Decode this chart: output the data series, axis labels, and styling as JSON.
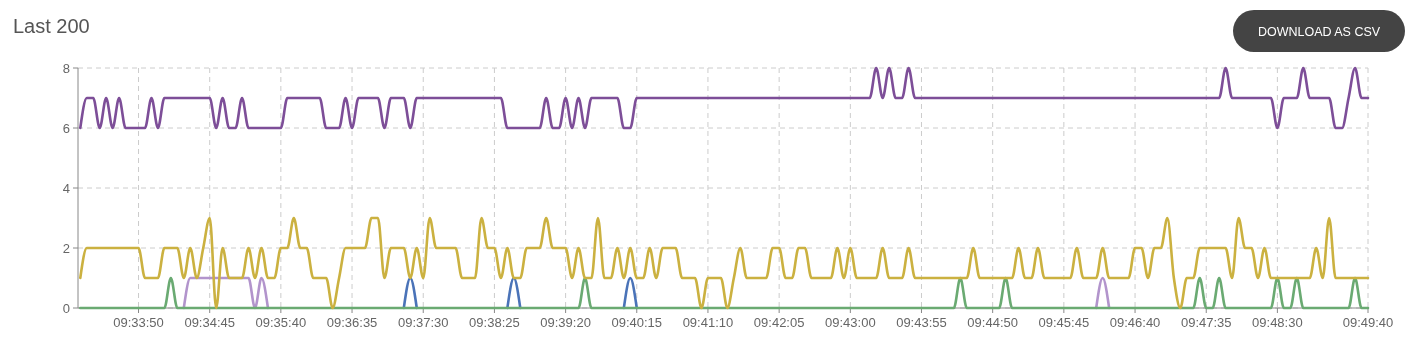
{
  "chart_data": {
    "type": "line",
    "title": "Last 200",
    "annotations": [
      "DOWNLOAD AS CSV"
    ],
    "x": [
      9.55139,
      9.55278,
      9.55417,
      9.55556,
      9.55694,
      9.55833,
      9.55972,
      9.56111,
      9.5625,
      9.56389,
      9.56528,
      9.56667,
      9.56806,
      9.56944,
      9.57083,
      9.57222,
      9.57361,
      9.575,
      9.57639,
      9.57778,
      9.57917,
      9.58056,
      9.58194,
      9.58333,
      9.58472,
      9.58611,
      9.5875,
      9.58889,
      9.59028,
      9.59167,
      9.59306,
      9.59444,
      9.59583,
      9.59722,
      9.59861,
      9.6,
      9.60139,
      9.60278,
      9.60417,
      9.60556,
      9.60694,
      9.60833,
      9.60972,
      9.61111,
      9.6125,
      9.61389,
      9.61528,
      9.61667,
      9.61806,
      9.61944,
      9.62083,
      9.62222,
      9.62361,
      9.625,
      9.62639,
      9.62778,
      9.62917,
      9.63056,
      9.63194,
      9.63333,
      9.63472,
      9.63611,
      9.6375,
      9.63889,
      9.64028,
      9.64167,
      9.64306,
      9.64444,
      9.64583,
      9.64722,
      9.64861,
      9.65,
      9.65139,
      9.65278,
      9.65417,
      9.65556,
      9.65694,
      9.65833,
      9.65972,
      9.66111,
      9.6625,
      9.66389,
      9.66528,
      9.66667,
      9.66806,
      9.66944,
      9.67083,
      9.67222,
      9.67361,
      9.675,
      9.67639,
      9.67778,
      9.67917,
      9.68056,
      9.68194,
      9.68333,
      9.68472,
      9.68611,
      9.6875,
      9.68889,
      9.69028,
      9.69167,
      9.69306,
      9.69444,
      9.69583,
      9.69722,
      9.69861,
      9.7,
      9.70139,
      9.70278,
      9.70417,
      9.70556,
      9.70694,
      9.70833,
      9.70972,
      9.71111,
      9.7125,
      9.71389,
      9.71528,
      9.71667,
      9.71806,
      9.71944,
      9.72083,
      9.72222,
      9.72361,
      9.725,
      9.72639,
      9.72778,
      9.72917,
      9.73056,
      9.73194,
      9.73333,
      9.73472,
      9.73611,
      9.7375,
      9.73889,
      9.74028,
      9.74167,
      9.74306,
      9.74444,
      9.74583,
      9.74722,
      9.74861,
      9.75,
      9.75139,
      9.75278,
      9.75417,
      9.75556,
      9.75694,
      9.75833,
      9.75972,
      9.76111,
      9.7625,
      9.76389,
      9.76528,
      9.76667,
      9.76806,
      9.76944,
      9.77083,
      9.77222,
      9.77361,
      9.775,
      9.77639,
      9.77778,
      9.77917,
      9.78056,
      9.78194,
      9.78333,
      9.78472,
      9.78611,
      9.7875,
      9.78889,
      9.79028,
      9.79167,
      9.79306,
      9.79444,
      9.79583,
      9.79722,
      9.79861,
      9.8,
      9.80139,
      9.80278,
      9.80417,
      9.80556,
      9.80694,
      9.80833,
      9.80972,
      9.81111,
      9.8125,
      9.81389,
      9.81528,
      9.81667,
      9.81806,
      9.81944,
      9.82083,
      9.82222,
      9.82361,
      9.825,
      9.82639,
      9.82778
    ],
    "series": [
      {
        "color": "#4a73b8",
        "values": [
          null,
          null,
          null,
          null,
          null,
          null,
          null,
          null,
          null,
          null,
          null,
          null,
          null,
          null,
          null,
          null,
          null,
          null,
          null,
          null,
          null,
          null,
          null,
          null,
          null,
          null,
          null,
          null,
          null,
          null,
          null,
          null,
          null,
          null,
          null,
          null,
          null,
          null,
          null,
          null,
          null,
          null,
          null,
          null,
          null,
          null,
          null,
          null,
          null,
          null,
          0,
          1,
          0,
          null,
          null,
          null,
          null,
          null,
          null,
          null,
          null,
          null,
          null,
          null,
          null,
          null,
          0,
          1,
          0,
          null,
          null,
          null,
          null,
          null,
          null,
          null,
          null,
          null,
          null,
          null,
          null,
          null,
          null,
          null,
          0,
          1,
          0,
          null,
          null,
          null,
          null,
          null,
          null,
          null,
          null,
          null,
          null,
          null,
          null,
          null,
          null,
          null,
          null,
          null,
          null,
          null,
          null,
          null,
          null,
          null,
          null,
          null,
          null,
          null,
          null,
          null,
          null,
          null,
          null,
          null,
          null,
          null,
          null,
          null,
          null,
          null,
          null,
          null,
          null,
          null,
          null,
          null,
          null,
          null,
          null,
          null,
          null,
          null,
          null,
          null,
          null,
          null,
          null,
          null,
          null,
          null,
          null,
          null,
          null,
          null,
          null,
          null,
          null,
          null,
          null,
          null,
          null,
          null,
          null,
          null,
          null,
          null,
          null,
          null,
          null,
          null,
          null,
          null,
          null,
          null,
          null,
          null,
          null,
          null,
          null,
          null,
          null,
          null,
          null,
          null,
          null,
          null,
          null,
          null,
          null,
          null,
          null,
          null,
          null,
          null,
          null,
          null,
          null,
          null,
          null,
          null,
          null,
          null,
          null,
          null
        ]
      },
      {
        "color": "#b294cc",
        "values": [
          null,
          null,
          null,
          null,
          null,
          null,
          null,
          null,
          null,
          null,
          null,
          null,
          null,
          null,
          null,
          null,
          0,
          1,
          1,
          1,
          1,
          1,
          1,
          1,
          1,
          1,
          1,
          0,
          1,
          0,
          null,
          null,
          null,
          null,
          null,
          null,
          null,
          null,
          null,
          null,
          null,
          null,
          null,
          null,
          null,
          null,
          null,
          null,
          null,
          null,
          null,
          null,
          null,
          null,
          null,
          null,
          null,
          null,
          null,
          null,
          null,
          null,
          null,
          null,
          null,
          null,
          null,
          null,
          null,
          null,
          null,
          null,
          null,
          null,
          null,
          null,
          null,
          null,
          null,
          null,
          null,
          null,
          null,
          null,
          null,
          null,
          null,
          null,
          null,
          null,
          null,
          null,
          null,
          null,
          null,
          null,
          null,
          null,
          null,
          null,
          null,
          null,
          null,
          null,
          null,
          null,
          null,
          null,
          null,
          null,
          null,
          null,
          null,
          null,
          null,
          null,
          null,
          null,
          null,
          null,
          null,
          null,
          null,
          null,
          null,
          null,
          null,
          null,
          null,
          null,
          null,
          null,
          null,
          null,
          null,
          null,
          null,
          null,
          null,
          null,
          null,
          null,
          null,
          null,
          null,
          null,
          null,
          null,
          null,
          null,
          null,
          null,
          null,
          null,
          null,
          null,
          null,
          0,
          1,
          0,
          null,
          null,
          null,
          null,
          null,
          null,
          null,
          null,
          null,
          null,
          null,
          null,
          null,
          null,
          null,
          null,
          null,
          null,
          null,
          null,
          null,
          null,
          null,
          null,
          null,
          null,
          null,
          null,
          null,
          null,
          null,
          null,
          null,
          null,
          null,
          null,
          null,
          null,
          null,
          null
        ]
      },
      {
        "color": "#6aaa72",
        "values": [
          0,
          0,
          0,
          0,
          0,
          0,
          0,
          0,
          0,
          0,
          0,
          0,
          0,
          0,
          1,
          0,
          0,
          0,
          0,
          0,
          0,
          0,
          0,
          0,
          0,
          0,
          0,
          0,
          0,
          0,
          0,
          0,
          0,
          0,
          0,
          0,
          0,
          0,
          0,
          0,
          0,
          0,
          0,
          0,
          0,
          0,
          0,
          0,
          0,
          0,
          0,
          0,
          0,
          0,
          0,
          0,
          0,
          0,
          0,
          0,
          0,
          0,
          0,
          0,
          0,
          0,
          0,
          0,
          0,
          0,
          0,
          0,
          0,
          0,
          0,
          0,
          0,
          0,
          1,
          0,
          0,
          0,
          0,
          0,
          0,
          0,
          0,
          0,
          0,
          0,
          0,
          0,
          0,
          0,
          0,
          0,
          0,
          0,
          0,
          0,
          0,
          0,
          0,
          0,
          0,
          0,
          0,
          0,
          0,
          0,
          0,
          0,
          0,
          0,
          0,
          0,
          0,
          0,
          0,
          0,
          0,
          0,
          0,
          0,
          0,
          0,
          0,
          0,
          0,
          0,
          0,
          0,
          0,
          0,
          0,
          0,
          1,
          0,
          0,
          0,
          0,
          0,
          0,
          1,
          0,
          0,
          0,
          0,
          0,
          0,
          0,
          0,
          0,
          0,
          0,
          0,
          0,
          0,
          0,
          0,
          0,
          0,
          0,
          0,
          0,
          0,
          0,
          0,
          0,
          0,
          0,
          0,
          0,
          1,
          0,
          0,
          1,
          0,
          0,
          0,
          0,
          0,
          0,
          0,
          0,
          1,
          0,
          0,
          1,
          0,
          0,
          0,
          0,
          0,
          0,
          0,
          0,
          1,
          0,
          0
        ]
      },
      {
        "color": "#cbb140",
        "values": [
          1,
          2,
          2,
          2,
          2,
          2,
          2,
          2,
          2,
          2,
          1,
          1,
          1,
          2,
          2,
          2,
          1,
          2,
          1,
          2,
          3,
          0,
          2,
          1,
          1,
          1,
          2,
          1,
          2,
          1,
          1,
          2,
          2,
          3,
          2,
          2,
          1,
          1,
          1,
          0,
          1,
          2,
          2,
          2,
          2,
          3,
          3,
          1,
          2,
          2,
          2,
          1,
          2,
          1,
          3,
          2,
          2,
          2,
          2,
          1,
          1,
          1,
          3,
          2,
          2,
          1,
          2,
          1,
          1,
          2,
          2,
          2,
          3,
          2,
          2,
          2,
          1,
          2,
          1,
          1,
          3,
          1,
          1,
          2,
          1,
          2,
          1,
          1,
          2,
          1,
          2,
          2,
          2,
          1,
          1,
          1,
          0,
          1,
          1,
          1,
          0,
          1,
          2,
          1,
          1,
          1,
          1,
          2,
          2,
          1,
          1,
          2,
          2,
          1,
          1,
          1,
          1,
          2,
          1,
          2,
          1,
          1,
          1,
          1,
          2,
          1,
          1,
          1,
          2,
          1,
          1,
          1,
          1,
          1,
          1,
          1,
          1,
          1,
          2,
          1,
          1,
          1,
          1,
          1,
          1,
          2,
          1,
          1,
          2,
          1,
          1,
          1,
          1,
          1,
          2,
          1,
          1,
          1,
          2,
          1,
          1,
          1,
          1,
          2,
          2,
          1,
          2,
          2,
          3,
          1,
          0,
          1,
          1,
          2,
          2,
          2,
          2,
          2,
          1,
          3,
          2,
          2,
          1,
          2,
          1,
          1,
          1,
          1,
          1,
          1,
          1,
          2,
          1,
          3,
          1,
          1,
          1,
          1,
          1,
          1
        ]
      },
      {
        "color": "#7d4e98",
        "values": [
          6,
          7,
          7,
          6,
          7,
          6,
          7,
          6,
          6,
          6,
          6,
          7,
          6,
          7,
          7,
          7,
          7,
          7,
          7,
          7,
          7,
          6,
          7,
          6,
          6,
          7,
          6,
          6,
          6,
          6,
          6,
          6,
          7,
          7,
          7,
          7,
          7,
          7,
          6,
          6,
          6,
          7,
          6,
          7,
          7,
          7,
          7,
          6,
          7,
          7,
          7,
          6,
          7,
          7,
          7,
          7,
          7,
          7,
          7,
          7,
          7,
          7,
          7,
          7,
          7,
          7,
          6,
          6,
          6,
          6,
          6,
          6,
          7,
          6,
          6,
          7,
          6,
          7,
          6,
          7,
          7,
          7,
          7,
          7,
          6,
          6,
          7,
          7,
          7,
          7,
          7,
          7,
          7,
          7,
          7,
          7,
          7,
          7,
          7,
          7,
          7,
          7,
          7,
          7,
          7,
          7,
          7,
          7,
          7,
          7,
          7,
          7,
          7,
          7,
          7,
          7,
          7,
          7,
          7,
          7,
          7,
          7,
          7,
          8,
          7,
          8,
          7,
          7,
          8,
          7,
          7,
          7,
          7,
          7,
          7,
          7,
          7,
          7,
          7,
          7,
          7,
          7,
          7,
          7,
          7,
          7,
          7,
          7,
          7,
          7,
          7,
          7,
          7,
          7,
          7,
          7,
          7,
          7,
          7,
          7,
          7,
          7,
          7,
          7,
          7,
          7,
          7,
          7,
          7,
          7,
          7,
          7,
          7,
          7,
          7,
          7,
          7,
          8,
          7,
          7,
          7,
          7,
          7,
          7,
          7,
          6,
          7,
          7,
          7,
          8,
          7,
          7,
          7,
          7,
          6,
          6,
          7,
          8,
          7,
          7
        ]
      }
    ],
    "xlim": [
      9.5509,
      9.82778
    ],
    "xticks": [
      {
        "value": 9.56389,
        "label": "09:33:50"
      },
      {
        "value": 9.57917,
        "label": "09:34:45"
      },
      {
        "value": 9.59444,
        "label": "09:35:40"
      },
      {
        "value": 9.60972,
        "label": "09:36:35"
      },
      {
        "value": 9.625,
        "label": "09:37:30"
      },
      {
        "value": 9.64028,
        "label": "09:38:25"
      },
      {
        "value": 9.65556,
        "label": "09:39:20"
      },
      {
        "value": 9.67083,
        "label": "09:40:15"
      },
      {
        "value": 9.68611,
        "label": "09:41:10"
      },
      {
        "value": 9.70139,
        "label": "09:42:05"
      },
      {
        "value": 9.71667,
        "label": "09:43:00"
      },
      {
        "value": 9.73194,
        "label": "09:43:55"
      },
      {
        "value": 9.74722,
        "label": "09:44:50"
      },
      {
        "value": 9.7625,
        "label": "09:45:45"
      },
      {
        "value": 9.77778,
        "label": "09:46:40"
      },
      {
        "value": 9.79306,
        "label": "09:47:35"
      },
      {
        "value": 9.80833,
        "label": "09:48:30"
      },
      {
        "value": 9.82778,
        "label": "09:49:40"
      }
    ],
    "ylim": [
      0,
      8
    ],
    "yticks": [
      0,
      2,
      4,
      6,
      8
    ],
    "grid": true,
    "marker": "none",
    "line_style": "solid"
  }
}
